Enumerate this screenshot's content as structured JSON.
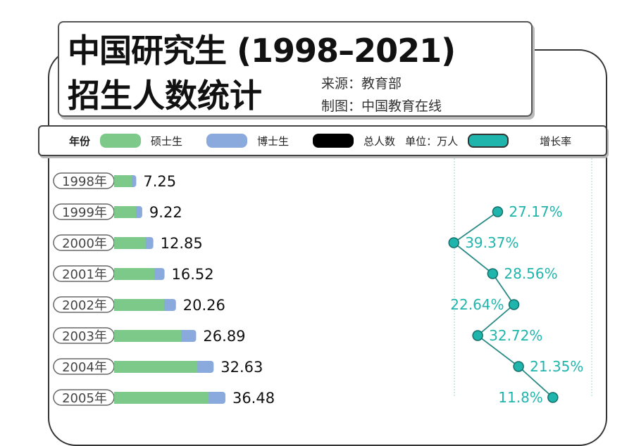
{
  "header": {
    "title_line1": "中国研究生 (1998–2021)",
    "title_line2": "招生人数统计",
    "source": "来源：教育部",
    "maker": "制图：中国教育在线"
  },
  "legend": {
    "year": "年份",
    "master": "硕士生",
    "doctor": "博士生",
    "total": "总人数",
    "unit": "单位：万人",
    "growth": "增长率",
    "colors": {
      "master": "#7cc98a",
      "doctor": "#8aa9dc",
      "total": "#000000",
      "growth": "#1fb5ad"
    }
  },
  "chart_data": {
    "type": "bar",
    "orientation": "horizontal-stacked-with-line",
    "unit": "万人",
    "categories": [
      "1998年",
      "1999年",
      "2000年",
      "2001年",
      "2002年",
      "2003年",
      "2004年",
      "2005年"
    ],
    "series": [
      {
        "name": "硕士生",
        "values": [
          5.75,
          7.23,
          10.34,
          13.31,
          16.4,
          22.02,
          27.3,
          31.0
        ]
      },
      {
        "name": "博士生",
        "values": [
          1.5,
          1.99,
          2.51,
          3.21,
          3.86,
          4.87,
          5.33,
          5.48
        ]
      }
    ],
    "totals": [
      "7.25",
      "9.22",
      "12.85",
      "16.52",
      "20.26",
      "26.89",
      "32.63",
      "36.48"
    ],
    "growth": {
      "name": "增长率",
      "values": [
        null,
        27.17,
        39.37,
        28.56,
        22.64,
        32.72,
        21.35,
        11.8
      ],
      "labels": [
        "",
        "27.17%",
        "39.37%",
        "28.56%",
        "22.64%",
        "32.72%",
        "21.35%",
        "11.8%"
      ]
    }
  }
}
